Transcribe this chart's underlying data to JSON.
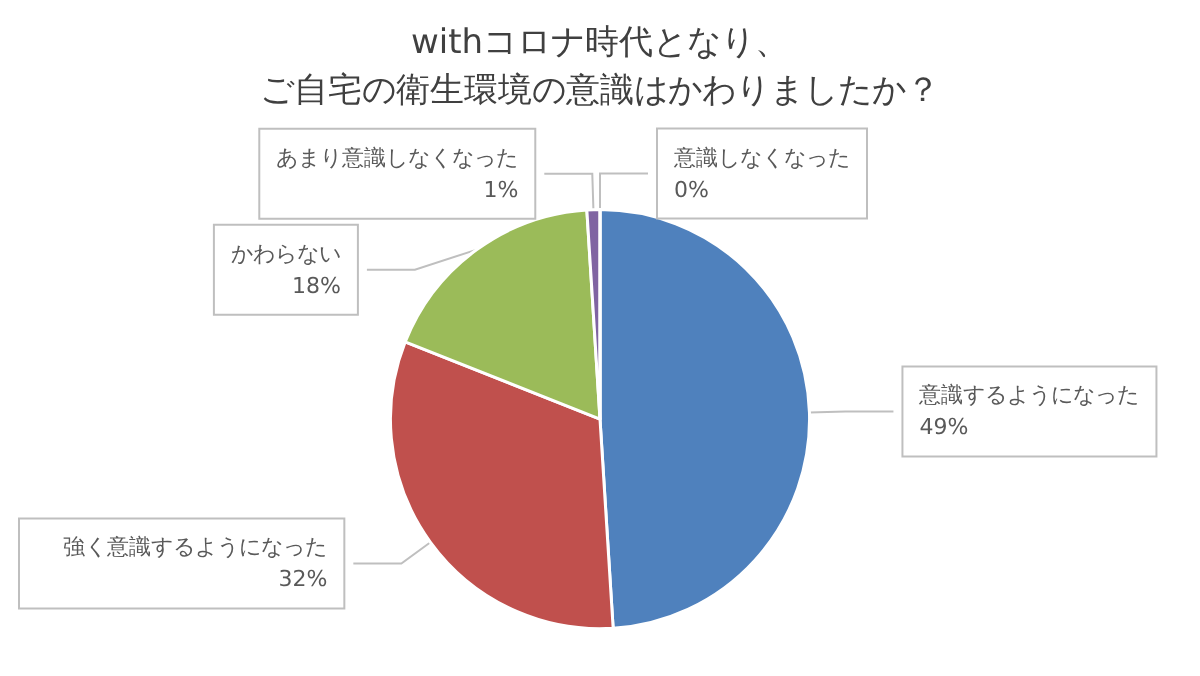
{
  "chart_data": {
    "type": "pie",
    "title": "withコロナ時代となり、",
    "subtitle": "ご自宅の衛生環境の意識はかわりましたか？",
    "categories": [
      "意識するようになった",
      "強く意識するようになった",
      "かわらない",
      "あまり意識しなくなった",
      "意識しなくなった"
    ],
    "values": [
      49,
      32,
      18,
      1,
      0
    ],
    "value_labels": [
      "49%",
      "32%",
      "18%",
      "1%",
      "0%"
    ],
    "colors": [
      "#4f81bd",
      "#c0504d",
      "#9bbb59",
      "#8064a2",
      "#4bacc6"
    ],
    "legend": false
  }
}
